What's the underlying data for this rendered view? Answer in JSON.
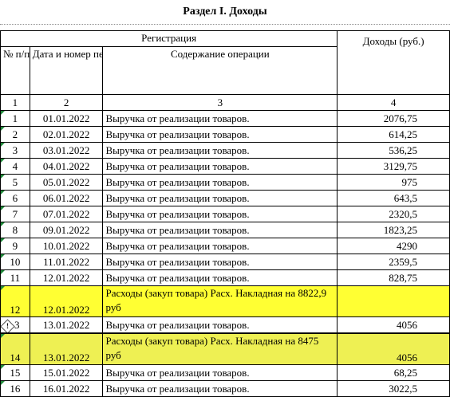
{
  "section_title": "Раздел I. Доходы",
  "headers": {
    "registration": "Регистрация",
    "number": "№ п/п",
    "date_doc": "Дата и номер первичного документа",
    "content": "Содержание операции",
    "income": "Доходы (руб.)"
  },
  "column_numbers": [
    "1",
    "2",
    "3",
    "4"
  ],
  "rows": [
    {
      "n": "1",
      "date": "01.01.2022",
      "desc": "Выручка от реализации товаров.",
      "amount": "2076,75"
    },
    {
      "n": "2",
      "date": "02.01.2022",
      "desc": "Выручка от реализации товаров.",
      "amount": "614,25"
    },
    {
      "n": "3",
      "date": "03.01.2022",
      "desc": "Выручка от реализации товаров.",
      "amount": "536,25"
    },
    {
      "n": "4",
      "date": "04.01.2022",
      "desc": "Выручка от реализации товаров.",
      "amount": "3129,75"
    },
    {
      "n": "5",
      "date": "05.01.2022",
      "desc": "Выручка от реализации товаров.",
      "amount": "975"
    },
    {
      "n": "6",
      "date": "06.01.2022",
      "desc": "Выручка от реализации товаров.",
      "amount": "643,5"
    },
    {
      "n": "7",
      "date": "07.01.2022",
      "desc": "Выручка от реализации товаров.",
      "amount": "2320,5"
    },
    {
      "n": "8",
      "date": "09.01.2022",
      "desc": "Выручка от реализации товаров.",
      "amount": "1823,25"
    },
    {
      "n": "9",
      "date": "10.01.2022",
      "desc": "Выручка от реализации товаров.",
      "amount": "4290"
    },
    {
      "n": "10",
      "date": "11.01.2022",
      "desc": "Выручка от реализации товаров.",
      "amount": "2359,5"
    },
    {
      "n": "11",
      "date": "12.01.2022",
      "desc": "Выручка от реализации товаров.",
      "amount": "828,75"
    },
    {
      "n": "12",
      "date": "12.01.2022",
      "desc": "Расходы (закуп товара) Расх. Накладная на 8822,9 руб",
      "amount": ""
    },
    {
      "n": "3",
      "date": "13.01.2022",
      "desc": "Выручка от реализации товаров.",
      "amount": "4056"
    },
    {
      "n": "14",
      "date": "13.01.2022",
      "desc": "Расходы (закуп товара) Расх. Накладная на 8475 руб",
      "amount": "4056"
    },
    {
      "n": "15",
      "date": "15.01.2022",
      "desc": "Выручка от реализации товаров.",
      "amount": "68,25"
    },
    {
      "n": "16",
      "date": "16.01.2022",
      "desc": "Выручка от реализации товаров.",
      "amount": "3022,5"
    }
  ],
  "colors": {
    "highlight": "#ffff33",
    "highlight_alt": "#eef053",
    "error_marker": "#1f8a3a"
  },
  "icons": {
    "warning": "warning-diamond-icon"
  }
}
